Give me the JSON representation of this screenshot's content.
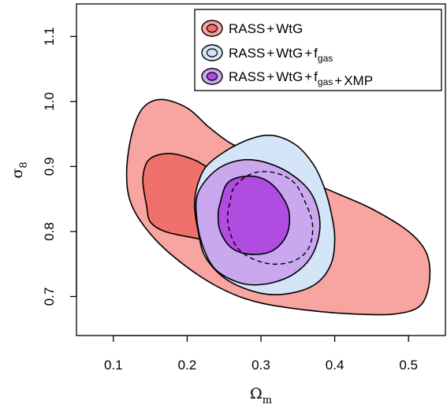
{
  "chart_data": {
    "type": "contour",
    "xlabel": {
      "base": "Ω",
      "sub": "m"
    },
    "ylabel": {
      "base": "σ",
      "sub": "8"
    },
    "xlim": [
      0.05,
      0.55
    ],
    "ylim": [
      0.64,
      1.15
    ],
    "xticks": [
      0.1,
      0.2,
      0.3,
      0.4,
      0.5
    ],
    "xtick_labels": [
      "0.1",
      "0.2",
      "0.3",
      "0.4",
      "0.5"
    ],
    "yticks": [
      0.7,
      0.8,
      0.9,
      1.0,
      1.1
    ],
    "ytick_labels": [
      "0.7",
      "0.8",
      "0.9",
      "1.0",
      "1.1"
    ],
    "legend_position": "top-right",
    "series": [
      {
        "legend": [
          {
            "t": "RASS"
          },
          {
            "t": "+"
          },
          {
            "t": "WtG"
          }
        ],
        "fill_outer": "#f8a4a0",
        "fill_inner": "#f0706c",
        "outer": [
          [
            0.118,
            0.89
          ],
          [
            0.125,
            0.95
          ],
          [
            0.14,
            0.99
          ],
          [
            0.165,
            1.003
          ],
          [
            0.2,
            0.99
          ],
          [
            0.23,
            0.96
          ],
          [
            0.26,
            0.935
          ],
          [
            0.3,
            0.915
          ],
          [
            0.35,
            0.885
          ],
          [
            0.4,
            0.86
          ],
          [
            0.45,
            0.835
          ],
          [
            0.5,
            0.8
          ],
          [
            0.525,
            0.765
          ],
          [
            0.528,
            0.72
          ],
          [
            0.515,
            0.685
          ],
          [
            0.48,
            0.673
          ],
          [
            0.43,
            0.673
          ],
          [
            0.37,
            0.678
          ],
          [
            0.3,
            0.69
          ],
          [
            0.25,
            0.71
          ],
          [
            0.2,
            0.745
          ],
          [
            0.155,
            0.79
          ],
          [
            0.125,
            0.84
          ]
        ],
        "inner": [
          [
            0.145,
            0.84
          ],
          [
            0.14,
            0.88
          ],
          [
            0.148,
            0.91
          ],
          [
            0.175,
            0.92
          ],
          [
            0.21,
            0.91
          ],
          [
            0.24,
            0.89
          ],
          [
            0.28,
            0.87
          ],
          [
            0.33,
            0.85
          ],
          [
            0.375,
            0.83
          ],
          [
            0.395,
            0.8
          ],
          [
            0.39,
            0.765
          ],
          [
            0.36,
            0.755
          ],
          [
            0.31,
            0.765
          ],
          [
            0.26,
            0.78
          ],
          [
            0.21,
            0.79
          ],
          [
            0.17,
            0.8
          ],
          [
            0.15,
            0.815
          ]
        ]
      },
      {
        "legend": [
          {
            "t": "RASS"
          },
          {
            "t": "+"
          },
          {
            "t": "WtG"
          },
          {
            "t": "+"
          },
          {
            "t": "f",
            "sub": "gas"
          }
        ],
        "fill_outer": "#d3e5f7",
        "fill_inner": "#d3e5f7",
        "outer": [
          [
            0.23,
            0.905
          ],
          [
            0.27,
            0.935
          ],
          [
            0.31,
            0.948
          ],
          [
            0.345,
            0.935
          ],
          [
            0.37,
            0.905
          ],
          [
            0.385,
            0.87
          ],
          [
            0.395,
            0.83
          ],
          [
            0.4,
            0.79
          ],
          [
            0.395,
            0.75
          ],
          [
            0.375,
            0.72
          ],
          [
            0.34,
            0.705
          ],
          [
            0.3,
            0.705
          ],
          [
            0.255,
            0.725
          ],
          [
            0.225,
            0.76
          ],
          [
            0.215,
            0.8
          ],
          [
            0.21,
            0.84
          ],
          [
            0.215,
            0.875
          ]
        ],
        "inner": []
      },
      {
        "legend": [
          {
            "t": "RASS"
          },
          {
            "t": "+"
          },
          {
            "t": "WtG"
          },
          {
            "t": "+"
          },
          {
            "t": "f",
            "sub": "gas"
          },
          {
            "t": "+"
          },
          {
            "t": "XMP"
          }
        ],
        "fill_outer": "#c9a8f0",
        "fill_inner": "#b04ce0",
        "outer": [
          [
            0.215,
            0.86
          ],
          [
            0.24,
            0.895
          ],
          [
            0.275,
            0.91
          ],
          [
            0.31,
            0.905
          ],
          [
            0.345,
            0.885
          ],
          [
            0.37,
            0.855
          ],
          [
            0.38,
            0.81
          ],
          [
            0.37,
            0.765
          ],
          [
            0.345,
            0.735
          ],
          [
            0.31,
            0.72
          ],
          [
            0.275,
            0.72
          ],
          [
            0.24,
            0.74
          ],
          [
            0.222,
            0.775
          ],
          [
            0.213,
            0.82
          ]
        ],
        "inner": [
          [
            0.245,
            0.845
          ],
          [
            0.255,
            0.875
          ],
          [
            0.28,
            0.885
          ],
          [
            0.305,
            0.88
          ],
          [
            0.325,
            0.86
          ],
          [
            0.338,
            0.83
          ],
          [
            0.335,
            0.795
          ],
          [
            0.315,
            0.77
          ],
          [
            0.285,
            0.765
          ],
          [
            0.26,
            0.775
          ],
          [
            0.245,
            0.8
          ],
          [
            0.242,
            0.825
          ]
        ],
        "dashed": [
          [
            0.265,
            0.87
          ],
          [
            0.29,
            0.89
          ],
          [
            0.32,
            0.89
          ],
          [
            0.345,
            0.875
          ],
          [
            0.36,
            0.845
          ],
          [
            0.37,
            0.81
          ],
          [
            0.365,
            0.775
          ],
          [
            0.345,
            0.755
          ],
          [
            0.315,
            0.75
          ],
          [
            0.285,
            0.76
          ],
          [
            0.265,
            0.78
          ],
          [
            0.255,
            0.815
          ],
          [
            0.258,
            0.845
          ]
        ]
      }
    ]
  }
}
